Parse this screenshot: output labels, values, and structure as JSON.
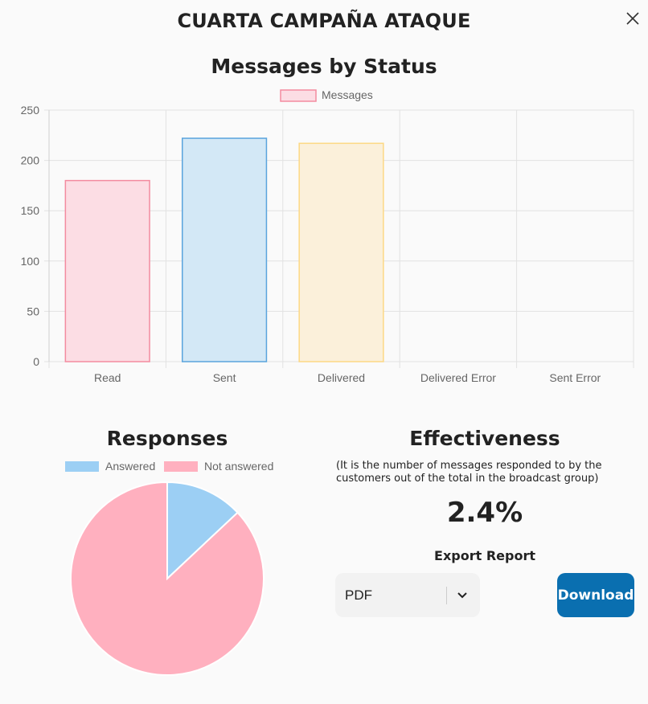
{
  "modal": {
    "title": "CUARTA CAMPAÑA ATAQUE",
    "close_icon": "close-icon"
  },
  "chart_data": [
    {
      "type": "bar",
      "title": "Messages by Status",
      "categories": [
        "Read",
        "Sent",
        "Delivered",
        "Delivered Error",
        "Sent Error"
      ],
      "series": [
        {
          "name": "Messages",
          "values": [
            180,
            222,
            217,
            0,
            0
          ]
        }
      ],
      "colors": {
        "fill": [
          "#fcdde4",
          "#d3e8f6",
          "#fbf0da",
          "#fcdde4",
          "#d3e8f6"
        ],
        "stroke": [
          "#f38ba0",
          "#5aa4dd",
          "#fcd884",
          "#f38ba0",
          "#5aa4dd"
        ]
      },
      "ylim": [
        0,
        250
      ],
      "yticks": [
        0,
        50,
        100,
        150,
        200,
        250
      ],
      "grid": true,
      "legend": "top"
    },
    {
      "type": "pie",
      "title": "Responses",
      "categories": [
        "Answered",
        "Not answered"
      ],
      "values": [
        13,
        87
      ],
      "colors": [
        "#9ccff4",
        "#ffb0bf"
      ],
      "legend": "top"
    }
  ],
  "effectiveness": {
    "title": "Effectiveness",
    "description": "(It is the number of messages responded to by the customers out of the total in the broadcast group)",
    "value": "2.4%"
  },
  "export": {
    "label": "Export Report",
    "format": "PDF",
    "download_label": "Download",
    "button_color": "#0a6fb0"
  }
}
